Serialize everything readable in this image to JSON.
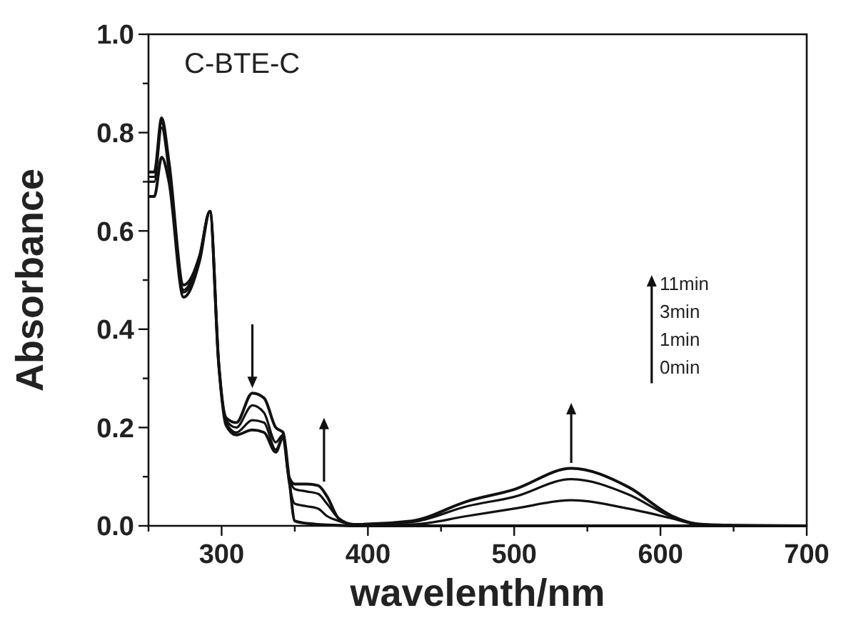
{
  "chart_data": {
    "type": "line",
    "xlabel": "wavelenth/nm",
    "ylabel": "Absorbance",
    "x": [
      250,
      254,
      259,
      264,
      274,
      285,
      292,
      298,
      303,
      310,
      321,
      329,
      337,
      342,
      346,
      350,
      358,
      366,
      372,
      380,
      390,
      430,
      468,
      500,
      539,
      578,
      608,
      625,
      650,
      700
    ],
    "series": [
      {
        "color": "#111111",
        "values": [
          0.72,
          0.72,
          0.83,
          0.74,
          0.49,
          0.55,
          0.64,
          0.33,
          0.22,
          0.21,
          0.27,
          0.26,
          0.2,
          0.19,
          0.1,
          0.01,
          0.005,
          0.003,
          0.002,
          0.001,
          0,
          0,
          0,
          0,
          0,
          0,
          0,
          0,
          0,
          0
        ]
      },
      {
        "color": "#111111",
        "values": [
          0.71,
          0.71,
          0.82,
          0.73,
          0.48,
          0.55,
          0.64,
          0.33,
          0.215,
          0.2,
          0.245,
          0.23,
          0.17,
          0.185,
          0.09,
          0.045,
          0.04,
          0.035,
          0.02,
          0.01,
          0.003,
          0.003,
          0.02,
          0.035,
          0.052,
          0.035,
          0.015,
          0.003,
          0,
          0
        ]
      },
      {
        "color": "#111111",
        "values": [
          0.7,
          0.7,
          0.81,
          0.72,
          0.475,
          0.545,
          0.64,
          0.33,
          0.21,
          0.19,
          0.215,
          0.21,
          0.155,
          0.18,
          0.1,
          0.075,
          0.07,
          0.065,
          0.045,
          0.015,
          0.003,
          0.008,
          0.04,
          0.059,
          0.095,
          0.064,
          0.018,
          0.004,
          0.001,
          0
        ]
      },
      {
        "color": "#111111",
        "values": [
          0.67,
          0.67,
          0.75,
          0.7,
          0.465,
          0.54,
          0.64,
          0.33,
          0.205,
          0.185,
          0.195,
          0.19,
          0.15,
          0.18,
          0.1,
          0.085,
          0.085,
          0.082,
          0.06,
          0.015,
          0.003,
          0.01,
          0.05,
          0.074,
          0.117,
          0.079,
          0.02,
          0.004,
          0.001,
          0
        ]
      }
    ],
    "xlim": [
      250,
      700
    ],
    "xticks": [
      {
        "value": 250,
        "label": null
      },
      300,
      {
        "value": 350,
        "label": null
      },
      400,
      {
        "value": 450,
        "label": null
      },
      500,
      {
        "value": 550,
        "label": null
      },
      600,
      {
        "value": 650,
        "label": null
      },
      700
    ],
    "ylim": [
      0,
      1
    ],
    "yticks": [
      {
        "value": 0,
        "label": "0.0"
      },
      {
        "value": 0.1,
        "label": null
      },
      0.2,
      {
        "value": 0.3,
        "label": null
      },
      0.4,
      {
        "value": 0.5,
        "label": null
      },
      0.6,
      {
        "value": 0.7,
        "label": null
      },
      0.8,
      {
        "value": 0.9,
        "label": null
      },
      {
        "value": 1,
        "label": "1.0"
      }
    ],
    "grid": false,
    "marker": "none",
    "line_style": "solid",
    "annotations": [
      "C-BTE-C",
      "11min",
      "3min",
      "1min",
      "0min"
    ]
  }
}
